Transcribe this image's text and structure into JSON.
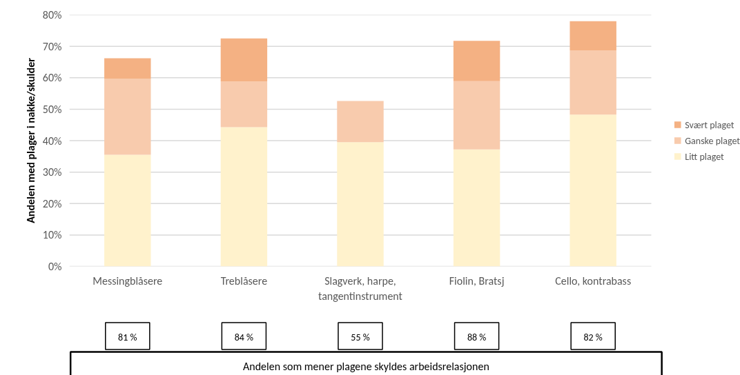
{
  "chart_data": {
    "type": "bar",
    "stacked": true,
    "ylabel": "Andelen med plager i nakke/skulder",
    "categories": [
      "Messingblåsere",
      "Treblåsere",
      "Slagverk, harpe, tangentinstrument",
      "Fiolin, Bratsj",
      "Cello, kontrabass"
    ],
    "series": [
      {
        "name": "Litt plaget",
        "color": "#fff2cc",
        "values": [
          35.5,
          44.3,
          39.5,
          37.2,
          48.3
        ]
      },
      {
        "name": "Ganske plaget",
        "color": "#f8cbad",
        "values": [
          24.1,
          14.5,
          13.1,
          21.7,
          20.4
        ]
      },
      {
        "name": "Svært plaget",
        "color": "#f4b183",
        "values": [
          6.6,
          13.7,
          null,
          12.8,
          9.3
        ]
      }
    ],
    "ylim": [
      0,
      80
    ],
    "yticks": [
      {
        "value": 0,
        "label": "0%"
      },
      {
        "value": 10,
        "label": "10%"
      },
      {
        "value": 20,
        "label": "20%"
      },
      {
        "value": 30,
        "label": "30%"
      },
      {
        "value": 40,
        "label": "40%"
      },
      {
        "value": 50,
        "label": "50%"
      },
      {
        "value": 60,
        "label": "60%"
      },
      {
        "value": 70,
        "label": "70%"
      },
      {
        "value": 80,
        "label": "80%"
      }
    ],
    "grid": "y",
    "legend": "right",
    "annotations": [
      "81 %",
      "84 %",
      "55 %",
      "88 %",
      "82 %",
      "Andelen som mener plagene skyldes arbeidsrelasjonen"
    ]
  }
}
